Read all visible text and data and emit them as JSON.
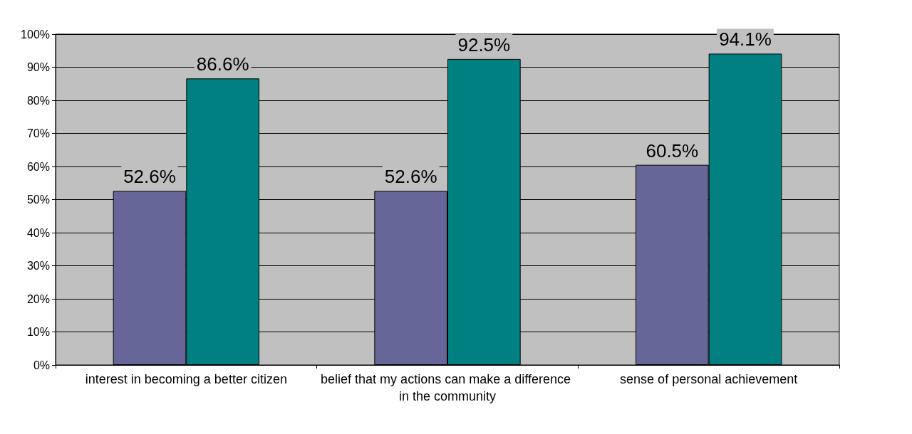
{
  "chart_data": {
    "type": "bar",
    "categories": [
      "interest in becoming a better citizen",
      "belief that my actions can make a difference in the community",
      "sense of personal achievement"
    ],
    "series": [
      {
        "color": "#666699",
        "values": [
          52.6,
          52.6,
          60.5
        ],
        "value_labels": [
          "52.6%",
          "52.6%",
          "60.5%"
        ]
      },
      {
        "color": "#008080",
        "values": [
          86.6,
          92.5,
          94.1
        ],
        "value_labels": [
          "86.6%",
          "92.5%",
          "94.1%"
        ]
      }
    ],
    "ylim": [
      0,
      100
    ],
    "yticks": [
      {
        "value": 0,
        "label": "0%"
      },
      {
        "value": 10,
        "label": "10%"
      },
      {
        "value": 20,
        "label": "20%"
      },
      {
        "value": 30,
        "label": "30%"
      },
      {
        "value": 40,
        "label": "40%"
      },
      {
        "value": 50,
        "label": "50%"
      },
      {
        "value": 60,
        "label": "60%"
      },
      {
        "value": 70,
        "label": "70%"
      },
      {
        "value": 80,
        "label": "80%"
      },
      {
        "value": 90,
        "label": "90%"
      },
      {
        "value": 100,
        "label": "100%"
      }
    ],
    "grid": "y"
  }
}
